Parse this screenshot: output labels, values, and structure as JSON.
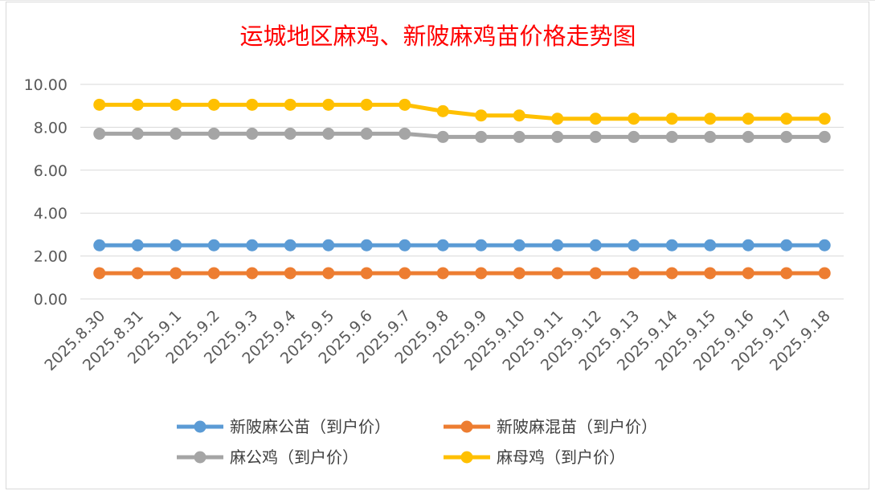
{
  "chart_data": {
    "type": "line",
    "title": "运城地区麻鸡、新陂麻鸡苗价格走势图",
    "xlabel": "",
    "ylabel": "",
    "ylim": [
      0,
      10
    ],
    "yticks": [
      "0.00",
      "2.00",
      "4.00",
      "6.00",
      "8.00",
      "10.00"
    ],
    "grid": true,
    "legend_position": "bottom",
    "categories": [
      "2025.8.30",
      "2025.8.31",
      "2025.9.1",
      "2025.9.2",
      "2025.9.3",
      "2025.9.4",
      "2025.9.5",
      "2025.9.6",
      "2025.9.7",
      "2025.9.8",
      "2025.9.9",
      "2025.9.10",
      "2025.9.11",
      "2025.9.12",
      "2025.9.13",
      "2025.9.14",
      "2025.9.15",
      "2025.9.16",
      "2025.9.17",
      "2025.9.18"
    ],
    "series": [
      {
        "name": "新陂麻公苗（到户价）",
        "color": "#5b9bd5",
        "values": [
          2.5,
          2.5,
          2.5,
          2.5,
          2.5,
          2.5,
          2.5,
          2.5,
          2.5,
          2.5,
          2.5,
          2.5,
          2.5,
          2.5,
          2.5,
          2.5,
          2.5,
          2.5,
          2.5,
          2.5
        ]
      },
      {
        "name": "新陂麻混苗（到户价）",
        "color": "#ed7d31",
        "values": [
          1.2,
          1.2,
          1.2,
          1.2,
          1.2,
          1.2,
          1.2,
          1.2,
          1.2,
          1.2,
          1.2,
          1.2,
          1.2,
          1.2,
          1.2,
          1.2,
          1.2,
          1.2,
          1.2,
          1.2
        ]
      },
      {
        "name": "麻公鸡（到户价）",
        "color": "#a5a5a5",
        "values": [
          7.7,
          7.7,
          7.7,
          7.7,
          7.7,
          7.7,
          7.7,
          7.7,
          7.7,
          7.55,
          7.55,
          7.55,
          7.55,
          7.55,
          7.55,
          7.55,
          7.55,
          7.55,
          7.55,
          7.55
        ]
      },
      {
        "name": "麻母鸡（到户价）",
        "color": "#ffc000",
        "values": [
          9.05,
          9.05,
          9.05,
          9.05,
          9.05,
          9.05,
          9.05,
          9.05,
          9.05,
          8.75,
          8.55,
          8.55,
          8.4,
          8.4,
          8.4,
          8.4,
          8.4,
          8.4,
          8.4,
          8.4
        ]
      }
    ]
  }
}
